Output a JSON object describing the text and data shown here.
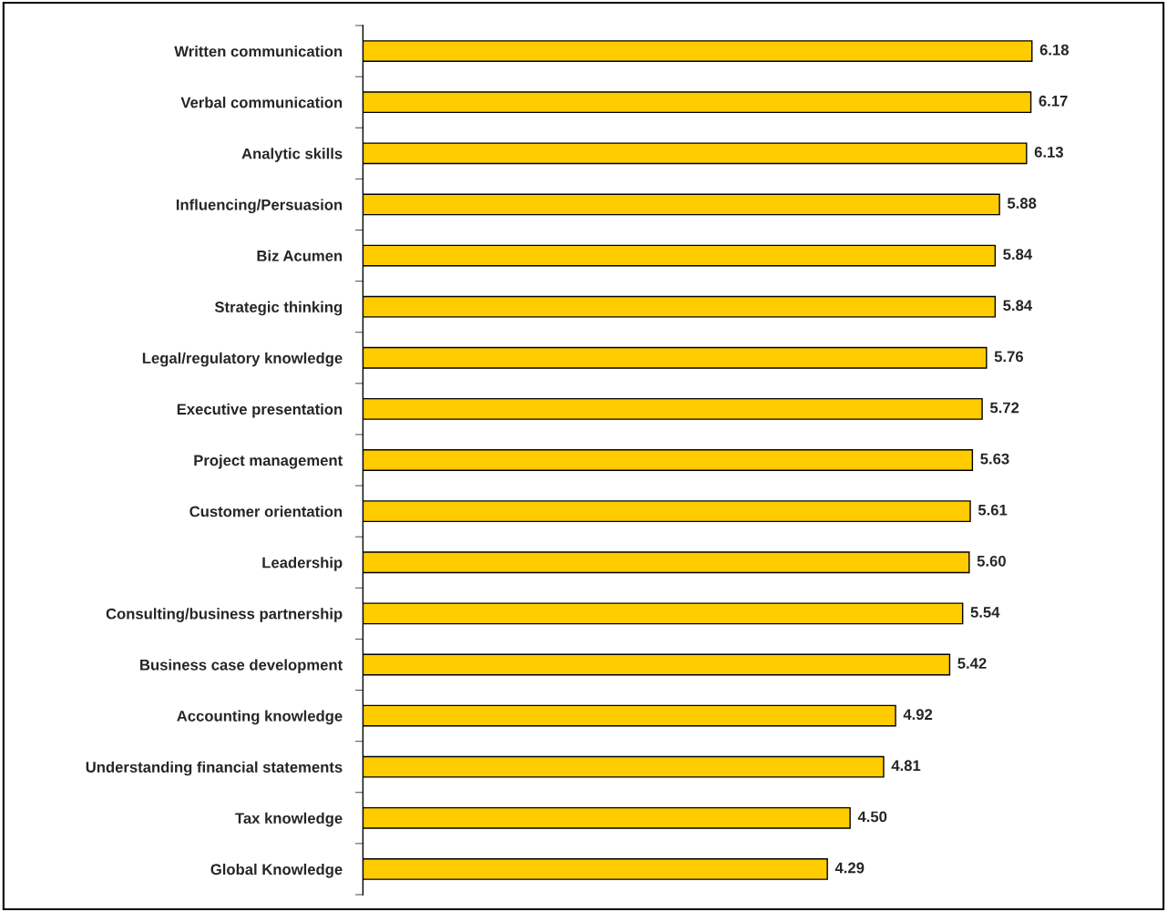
{
  "chart_data": {
    "type": "bar",
    "orientation": "horizontal",
    "categories": [
      "Written communication",
      "Verbal communication",
      "Analytic skills",
      "Influencing/Persuasion",
      "Biz Acumen",
      "Strategic thinking",
      "Legal/regulatory knowledge",
      "Executive presentation",
      "Project management",
      "Customer orientation",
      "Leadership",
      "Consulting/business partnership",
      "Business case development",
      "Accounting knowledge",
      "Understanding financial statements",
      "Tax knowledge",
      "Global Knowledge"
    ],
    "values": [
      6.18,
      6.17,
      6.13,
      5.88,
      5.84,
      5.84,
      5.76,
      5.72,
      5.63,
      5.61,
      5.6,
      5.54,
      5.42,
      4.92,
      4.81,
      4.5,
      4.29
    ],
    "value_labels": [
      "6.18",
      "6.17",
      "6.13",
      "5.88",
      "5.84",
      "5.84",
      "5.76",
      "5.72",
      "5.63",
      "5.61",
      "5.60",
      "5.54",
      "5.42",
      "4.92",
      "4.81",
      "4.50",
      "4.29"
    ],
    "color": "#ffcc00",
    "tick_labels": "y",
    "grid": false
  }
}
